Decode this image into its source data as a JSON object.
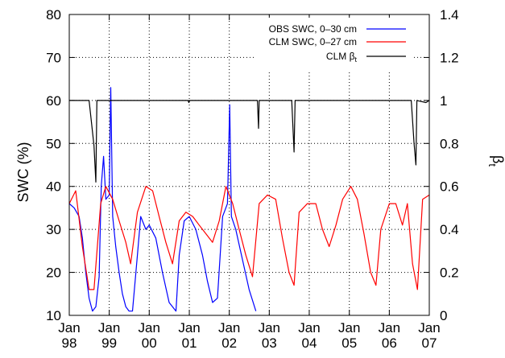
{
  "chart_data": {
    "type": "line",
    "xlabel": "",
    "ylabel": "SWC (%)",
    "y2label": "β",
    "y2label_sub": "t",
    "ylim": [
      10,
      80
    ],
    "y2lim": [
      0,
      1.4
    ],
    "xlim": [
      "1998-01-01",
      "2007-01-01"
    ],
    "grid": true,
    "legend_position": "top-right",
    "yticks": [
      "10",
      "20",
      "30",
      "40",
      "50",
      "60",
      "70",
      "80"
    ],
    "y2ticks": [
      "0",
      "0.2",
      "0.4",
      "0.6",
      "0.8",
      "1",
      "1.2",
      "1.4"
    ],
    "xticks": [
      {
        "month": "Jan",
        "year": "98",
        "date": "1998-01-01"
      },
      {
        "month": "Jan",
        "year": "99",
        "date": "1999-01-01"
      },
      {
        "month": "Jan",
        "year": "00",
        "date": "2000-01-01"
      },
      {
        "month": "Jan",
        "year": "01",
        "date": "2001-01-01"
      },
      {
        "month": "Jan",
        "year": "02",
        "date": "2002-01-01"
      },
      {
        "month": "Jan",
        "year": "03",
        "date": "2003-01-01"
      },
      {
        "month": "Jan",
        "year": "04",
        "date": "2004-01-01"
      },
      {
        "month": "Jan",
        "year": "05",
        "date": "2005-01-01"
      },
      {
        "month": "Jan",
        "year": "06",
        "date": "2006-01-01"
      },
      {
        "month": "Jan",
        "year": "07",
        "date": "2007-01-01"
      }
    ],
    "series": [
      {
        "name": "OBS SWC, 0–30 cm",
        "axis": "left",
        "color": "#0000ff",
        "points": [
          [
            "1998-01-01",
            36
          ],
          [
            "1998-02-15",
            35
          ],
          [
            "1998-04-01",
            33
          ],
          [
            "1998-05-01",
            28
          ],
          [
            "1998-06-01",
            20
          ],
          [
            "1998-07-01",
            14
          ],
          [
            "1998-08-01",
            11
          ],
          [
            "1998-09-01",
            12
          ],
          [
            "1998-10-01",
            19
          ],
          [
            "1998-10-20",
            40
          ],
          [
            "1998-11-10",
            47
          ],
          [
            "1998-12-01",
            37
          ],
          [
            "1999-01-01",
            38
          ],
          [
            "1999-01-15",
            63
          ],
          [
            "1999-02-01",
            33
          ],
          [
            "1999-03-01",
            26
          ],
          [
            "1999-04-01",
            20
          ],
          [
            "1999-05-01",
            15
          ],
          [
            "1999-06-01",
            12
          ],
          [
            "1999-07-01",
            11
          ],
          [
            "1999-08-01",
            11
          ],
          [
            "1999-09-15",
            24
          ],
          [
            "1999-10-15",
            33
          ],
          [
            "1999-12-01",
            30
          ],
          [
            "2000-01-01",
            31
          ],
          [
            "2000-03-01",
            28
          ],
          [
            "2000-05-01",
            20
          ],
          [
            "2000-07-01",
            13
          ],
          [
            "2000-09-01",
            11
          ],
          [
            "2000-10-01",
            24
          ],
          [
            "2000-11-15",
            32
          ],
          [
            "2001-01-01",
            33
          ],
          [
            "2001-03-01",
            30
          ],
          [
            "2001-05-01",
            24
          ],
          [
            "2001-06-15",
            18
          ],
          [
            "2001-08-01",
            13
          ],
          [
            "2001-09-15",
            14
          ],
          [
            "2001-11-01",
            33
          ],
          [
            "2001-12-15",
            36
          ],
          [
            "2002-01-05",
            59
          ],
          [
            "2002-01-20",
            33
          ],
          [
            "2002-03-01",
            30
          ],
          [
            "2002-05-01",
            23
          ],
          [
            "2002-07-01",
            16
          ],
          [
            "2002-09-01",
            11
          ]
        ]
      },
      {
        "name": "CLM SWC, 0–27 cm",
        "axis": "left",
        "color": "#ff0000",
        "points": [
          [
            "1998-01-01",
            36
          ],
          [
            "1998-03-01",
            39
          ],
          [
            "1998-05-01",
            26
          ],
          [
            "1998-07-01",
            16
          ],
          [
            "1998-08-15",
            16
          ],
          [
            "1998-10-15",
            36
          ],
          [
            "1998-12-01",
            40
          ],
          [
            "1999-02-01",
            37
          ],
          [
            "1999-04-01",
            32
          ],
          [
            "1999-06-01",
            27
          ],
          [
            "1999-07-15",
            22
          ],
          [
            "1999-09-15",
            34
          ],
          [
            "1999-12-01",
            40
          ],
          [
            "2000-02-01",
            39
          ],
          [
            "2000-04-01",
            33
          ],
          [
            "2000-06-01",
            27
          ],
          [
            "2000-08-01",
            22
          ],
          [
            "2000-10-01",
            32
          ],
          [
            "2000-12-01",
            34
          ],
          [
            "2001-02-01",
            33
          ],
          [
            "2001-04-01",
            31
          ],
          [
            "2001-06-01",
            29
          ],
          [
            "2001-08-01",
            27
          ],
          [
            "2001-10-01",
            32
          ],
          [
            "2001-12-01",
            40
          ],
          [
            "2002-02-01",
            36
          ],
          [
            "2002-04-01",
            30
          ],
          [
            "2002-06-01",
            24
          ],
          [
            "2002-08-01",
            19
          ],
          [
            "2002-10-01",
            36
          ],
          [
            "2002-12-15",
            38
          ],
          [
            "2003-03-01",
            37
          ],
          [
            "2003-05-01",
            28
          ],
          [
            "2003-07-01",
            20
          ],
          [
            "2003-08-15",
            17
          ],
          [
            "2003-10-01",
            34
          ],
          [
            "2003-12-15",
            36
          ],
          [
            "2004-03-01",
            36
          ],
          [
            "2004-05-01",
            30
          ],
          [
            "2004-07-01",
            26
          ],
          [
            "2004-09-01",
            31
          ],
          [
            "2004-11-01",
            37
          ],
          [
            "2005-01-15",
            40
          ],
          [
            "2005-03-15",
            37
          ],
          [
            "2005-05-15",
            29
          ],
          [
            "2005-07-15",
            20
          ],
          [
            "2005-09-01",
            17
          ],
          [
            "2005-10-15",
            30
          ],
          [
            "2006-01-01",
            36
          ],
          [
            "2006-03-01",
            36
          ],
          [
            "2006-05-01",
            31
          ],
          [
            "2006-06-15",
            36
          ],
          [
            "2006-08-01",
            22
          ],
          [
            "2006-09-15",
            16
          ],
          [
            "2006-11-01",
            37
          ],
          [
            "2007-01-01",
            38
          ]
        ]
      },
      {
        "name": "CLM β",
        "name_sub": "t",
        "axis": "right",
        "color": "#000000",
        "points": [
          [
            "1998-01-01",
            1.0
          ],
          [
            "1998-07-01",
            1.0
          ],
          [
            "1998-08-15",
            0.79
          ],
          [
            "1998-09-01",
            0.62
          ],
          [
            "1998-09-10",
            1.0
          ],
          [
            "2000-12-20",
            1.0
          ],
          [
            "2000-12-28",
            0.99
          ],
          [
            "2001-01-05",
            1.0
          ],
          [
            "2002-09-15",
            1.0
          ],
          [
            "2002-09-25",
            0.87
          ],
          [
            "2002-10-01",
            1.0
          ],
          [
            "2003-07-25",
            1.0
          ],
          [
            "2003-08-15",
            0.76
          ],
          [
            "2003-08-25",
            1.0
          ],
          [
            "2006-07-20",
            1.0
          ],
          [
            "2006-08-15",
            0.8
          ],
          [
            "2006-09-01",
            0.7
          ],
          [
            "2006-09-10",
            1.0
          ],
          [
            "2006-12-01",
            0.99
          ],
          [
            "2007-01-01",
            1.0
          ]
        ]
      }
    ]
  }
}
